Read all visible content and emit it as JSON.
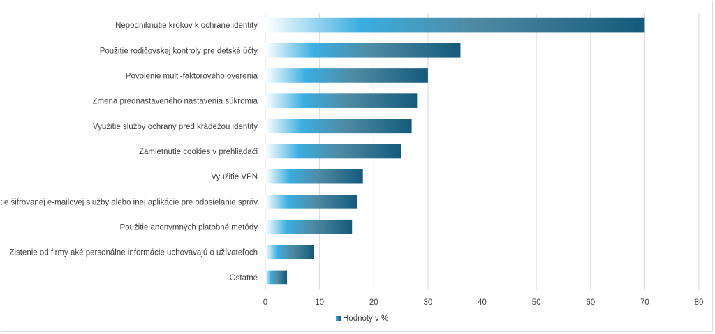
{
  "chart_data": {
    "type": "bar",
    "orientation": "horizontal",
    "categories": [
      "Nepodniknutie krokov k ochrane identity",
      "Použitie rodičovskej kontroly pre detské účty",
      "Povolenie multi-faktorového overenia",
      "Zmena prednastaveného nastavenia súkromia",
      "Využitie služby ochrany pred krádežou identity",
      "Zamietnutie cookies v prehliadači",
      "Využitie VPN",
      "Použitie šifrovanej e-mailovej služby alebo inej aplikácie pre odosielanie správ",
      "Použitie anonymných platobné metódy",
      "Zistenie od firmy aké personálne informácie uchovávajú o užívateľoch",
      "Ostatné"
    ],
    "series": [
      {
        "name": "Hodnoty v %",
        "values": [
          70,
          36,
          30,
          28,
          27,
          25,
          18,
          17,
          16,
          9,
          4
        ]
      }
    ],
    "xlim": [
      0,
      80
    ],
    "xticks": [
      0,
      10,
      20,
      30,
      40,
      50,
      60,
      70,
      80
    ],
    "grid": true,
    "legend_position": "bottom",
    "colors": {
      "gradient_start": "#ffffff",
      "gradient_mid": "#3aaee0",
      "gradient_end": "#145a7c",
      "grid": "#d9d9d9",
      "text": "#404040"
    }
  }
}
